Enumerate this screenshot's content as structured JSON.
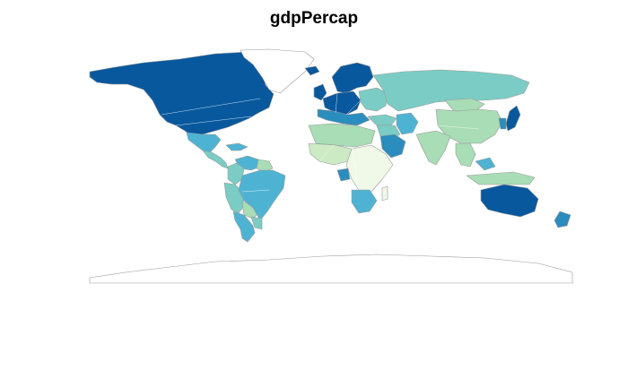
{
  "title": "gdpPercap",
  "palette": {
    "very_high": "#08589e",
    "high": "#2b8cbe",
    "upper_mid": "#4eb3d3",
    "mid": "#7bccc4",
    "lower_mid": "#a8ddb5",
    "low": "#ccebc5",
    "very_low": "#f0f9e8",
    "no_data": "#ffffff",
    "outline": "#9a9a9a"
  },
  "regions": [
    {
      "name": "north-america",
      "fill_class": "very_high"
    },
    {
      "name": "greenland",
      "fill_class": "no_data"
    },
    {
      "name": "mexico",
      "fill_class": "upper_mid"
    },
    {
      "name": "central-america",
      "fill_class": "mid"
    },
    {
      "name": "caribbean",
      "fill_class": "upper_mid"
    },
    {
      "name": "venezuela",
      "fill_class": "upper_mid"
    },
    {
      "name": "colombia",
      "fill_class": "mid"
    },
    {
      "name": "guianas",
      "fill_class": "lower_mid"
    },
    {
      "name": "brazil",
      "fill_class": "upper_mid"
    },
    {
      "name": "peru-ecuador",
      "fill_class": "mid"
    },
    {
      "name": "bolivia",
      "fill_class": "lower_mid"
    },
    {
      "name": "chile-argentina",
      "fill_class": "upper_mid"
    },
    {
      "name": "uruguay-paraguay",
      "fill_class": "mid"
    },
    {
      "name": "scandinavia",
      "fill_class": "very_high"
    },
    {
      "name": "iceland",
      "fill_class": "very_high"
    },
    {
      "name": "uk-ireland",
      "fill_class": "very_high"
    },
    {
      "name": "western-europe",
      "fill_class": "very_high"
    },
    {
      "name": "southern-europe",
      "fill_class": "high"
    },
    {
      "name": "eastern-europe",
      "fill_class": "mid"
    },
    {
      "name": "russia-central-asia",
      "fill_class": "mid"
    },
    {
      "name": "turkey",
      "fill_class": "mid"
    },
    {
      "name": "iran",
      "fill_class": "upper_mid"
    },
    {
      "name": "saudi-arabia",
      "fill_class": "high"
    },
    {
      "name": "middle-east",
      "fill_class": "mid"
    },
    {
      "name": "china",
      "fill_class": "lower_mid"
    },
    {
      "name": "mongolia",
      "fill_class": "lower_mid"
    },
    {
      "name": "japan",
      "fill_class": "very_high"
    },
    {
      "name": "korea",
      "fill_class": "high"
    },
    {
      "name": "india",
      "fill_class": "lower_mid"
    },
    {
      "name": "southeast-asia",
      "fill_class": "lower_mid"
    },
    {
      "name": "malaysia",
      "fill_class": "upper_mid"
    },
    {
      "name": "indonesia",
      "fill_class": "lower_mid"
    },
    {
      "name": "north-africa",
      "fill_class": "lower_mid"
    },
    {
      "name": "west-africa",
      "fill_class": "low"
    },
    {
      "name": "central-east-africa",
      "fill_class": "very_low"
    },
    {
      "name": "gabon",
      "fill_class": "high"
    },
    {
      "name": "southern-africa",
      "fill_class": "upper_mid"
    },
    {
      "name": "madagascar",
      "fill_class": "very_low"
    },
    {
      "name": "australia",
      "fill_class": "very_high"
    },
    {
      "name": "new-zealand",
      "fill_class": "high"
    },
    {
      "name": "antarctica",
      "fill_class": "no_data"
    }
  ]
}
